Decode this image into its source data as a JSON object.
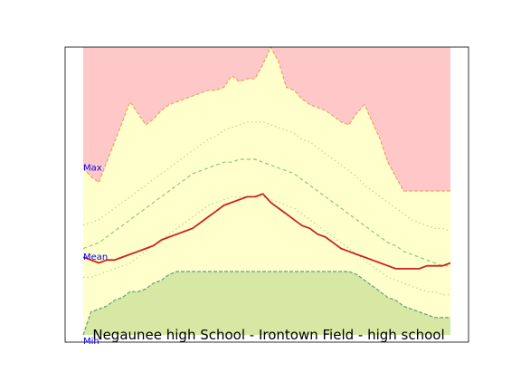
{
  "chart_data": {
    "type": "area",
    "title": "Negaunee high School - Irontown Field - high school",
    "xlabel": "",
    "ylabel": "",
    "xlim": [
      0,
      47
    ],
    "ylim": [
      0,
      100
    ],
    "axis_ticks_visible": false,
    "labels": {
      "max": "Max",
      "mean": "Mean",
      "min": "Min"
    },
    "colors": {
      "above_max": "#ffc8c8",
      "between": "#ffffcc",
      "below_min": "#d6e8a4",
      "max_line": "#f0a060",
      "mean_line": "#cc2222",
      "min_line": "#5fa080",
      "band_dashed": "#88cc66",
      "band_dotted": "#bbd880",
      "label_text": "#0000ff"
    },
    "x": [
      0,
      1,
      2,
      3,
      4,
      5,
      6,
      7,
      8,
      9,
      10,
      11,
      12,
      13,
      14,
      15,
      16,
      17,
      18,
      19,
      20,
      21,
      22,
      23,
      24,
      25,
      26,
      27,
      28,
      29,
      30,
      31,
      32,
      33,
      34,
      35,
      36,
      37,
      38,
      39,
      40,
      41,
      42,
      43,
      44,
      45,
      46,
      47
    ],
    "series": [
      {
        "role": "max",
        "values": [
          58,
          55,
          53,
          60,
          67,
          74,
          81,
          77,
          73,
          75,
          78,
          80,
          81,
          82,
          83,
          84,
          85,
          85,
          86,
          90,
          88,
          89,
          89,
          94,
          100,
          95,
          86,
          85,
          82,
          80,
          79,
          78,
          76,
          74,
          73,
          77,
          80,
          74,
          68,
          60,
          55,
          50,
          50,
          50,
          50,
          50,
          50,
          50
        ]
      },
      {
        "role": "upper_dotted",
        "values": [
          38,
          39,
          40,
          42,
          44,
          46,
          48,
          50,
          52,
          54,
          56,
          58,
          60,
          62,
          64,
          66,
          68,
          69,
          71,
          72,
          73,
          74,
          74,
          74,
          73,
          72,
          71,
          70,
          68,
          67,
          65,
          63,
          61,
          59,
          57,
          55,
          52,
          50,
          48,
          46,
          44,
          42,
          40,
          39,
          38,
          37,
          37,
          36
        ]
      },
      {
        "role": "upper_dashed",
        "values": [
          30,
          31,
          32,
          34,
          36,
          38,
          40,
          42,
          44,
          46,
          48,
          50,
          52,
          54,
          56,
          57,
          58,
          59,
          60,
          60,
          61,
          61,
          61,
          60,
          59,
          58,
          57,
          56,
          54,
          52,
          50,
          48,
          46,
          44,
          42,
          40,
          38,
          36,
          34,
          32,
          31,
          29,
          28,
          27,
          26,
          25,
          24,
          24
        ]
      },
      {
        "role": "mean",
        "values": [
          27,
          26,
          25,
          26,
          26,
          27,
          28,
          29,
          30,
          31,
          33,
          34,
          35,
          36,
          37,
          39,
          41,
          43,
          45,
          46,
          47,
          48,
          48,
          49,
          46,
          44,
          42,
          40,
          38,
          37,
          35,
          34,
          32,
          30,
          29,
          28,
          27,
          26,
          25,
          24,
          23,
          23,
          23,
          23,
          24,
          24,
          24,
          25
        ]
      },
      {
        "role": "lower_dotted",
        "values": [
          20,
          20,
          21,
          22,
          23,
          24,
          25,
          27,
          29,
          31,
          33,
          35,
          37,
          39,
          41,
          43,
          45,
          46,
          47,
          48,
          48,
          48,
          48,
          48,
          47,
          46,
          45,
          44,
          42,
          40,
          38,
          36,
          34,
          32,
          30,
          28,
          26,
          24,
          22,
          20,
          19,
          18,
          17,
          16,
          15,
          15,
          14,
          14
        ]
      },
      {
        "role": "min",
        "values": [
          0,
          8,
          9,
          10,
          12,
          13,
          15,
          15,
          16,
          18,
          19,
          21,
          22,
          22,
          22,
          22,
          22,
          22,
          22,
          22,
          22,
          22,
          22,
          22,
          22,
          22,
          22,
          22,
          22,
          22,
          22,
          22,
          22,
          22,
          22,
          21,
          19,
          17,
          15,
          13,
          12,
          10,
          9,
          8,
          7,
          6,
          6,
          6
        ]
      }
    ]
  }
}
